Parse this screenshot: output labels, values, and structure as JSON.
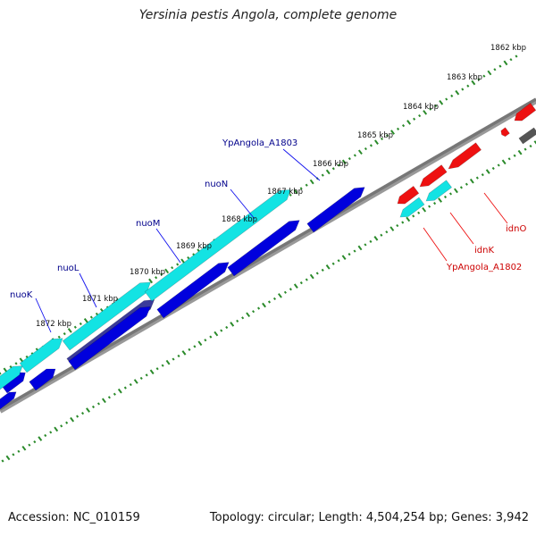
{
  "title": "Yersinia pestis Angola, complete genome",
  "footer": {
    "accession": "Accession: NC_010159",
    "topology": "Topology: circular; Length: 4,504,254 bp; Genes: 3,942"
  },
  "colors": {
    "forward_gene": "#0000dd",
    "forward_gene_alt": "#3b3b9a",
    "cds_cyan": "#13e3e3",
    "reverse_gene": "#ee1111",
    "backbone": "#888888",
    "gc_ticks": "#2a8a2a",
    "label_forward": "#00008b",
    "label_reverse": "#cc0000"
  },
  "scale_labels": [
    "1862 kbp",
    "1863 kbp",
    "1864 kbp",
    "1865 kbp",
    "1866 kbp",
    "1867 kbp",
    "1868 kbp",
    "1869 kbp",
    "1870 kbp",
    "1871 kbp",
    "1872 kbp"
  ],
  "gene_labels": [
    {
      "text": "YpAngola_A1803",
      "strand": "forward"
    },
    {
      "text": "nuoN",
      "strand": "forward"
    },
    {
      "text": "nuoM",
      "strand": "forward"
    },
    {
      "text": "nuoL",
      "strand": "forward"
    },
    {
      "text": "nuoK",
      "strand": "forward"
    },
    {
      "text": "idnO",
      "strand": "reverse"
    },
    {
      "text": "idnK",
      "strand": "reverse"
    },
    {
      "text": "YpAngola_A1802",
      "strand": "reverse"
    }
  ]
}
